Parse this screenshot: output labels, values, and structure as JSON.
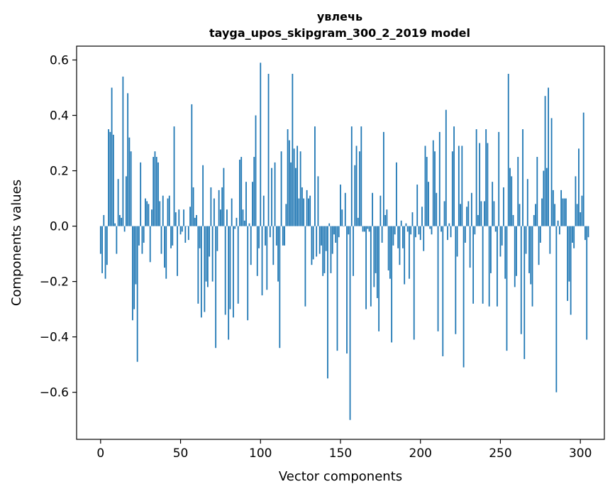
{
  "chart_data": {
    "type": "bar",
    "title": "увлечь",
    "subtitle": "tayga_upos_skipgram_300_2_2019 model",
    "xlabel": "Vector components",
    "ylabel": "Components values",
    "xlim": [
      -15,
      315
    ],
    "ylim": [
      -0.77,
      0.65
    ],
    "xticks": [
      0,
      50,
      100,
      150,
      200,
      250,
      300
    ],
    "yticks": [
      -0.6,
      -0.4,
      -0.2,
      0.0,
      0.2,
      0.4,
      0.6
    ],
    "ytick_labels": [
      "−0.6",
      "−0.4",
      "−0.2",
      "0.0",
      "0.2",
      "0.4",
      "0.6"
    ],
    "grid": false,
    "bar_color": "#1f77b4",
    "values": [
      -0.1,
      -0.17,
      0.04,
      -0.19,
      -0.14,
      0.35,
      0.34,
      0.5,
      0.33,
      0.01,
      -0.1,
      0.17,
      0.04,
      0.03,
      0.54,
      -0.02,
      0.18,
      0.48,
      0.32,
      0.27,
      -0.34,
      -0.3,
      -0.21,
      -0.49,
      -0.07,
      0.23,
      -0.1,
      -0.06,
      0.1,
      0.09,
      0.08,
      -0.13,
      0.06,
      0.25,
      0.27,
      0.25,
      0.23,
      0.09,
      -0.1,
      0.11,
      -0.15,
      -0.19,
      0.1,
      0.11,
      -0.08,
      -0.07,
      0.36,
      0.05,
      -0.18,
      0.06,
      -0.03,
      -0.02,
      0.06,
      -0.06,
      0.0,
      -0.05,
      0.07,
      0.44,
      0.14,
      0.03,
      0.04,
      -0.28,
      -0.08,
      -0.33,
      0.22,
      -0.31,
      -0.2,
      -0.22,
      -0.11,
      0.14,
      -0.2,
      0.1,
      -0.44,
      -0.09,
      0.13,
      0.06,
      0.14,
      0.21,
      -0.32,
      0.06,
      -0.41,
      -0.3,
      0.1,
      -0.33,
      -0.01,
      0.03,
      -0.28,
      0.24,
      0.25,
      0.06,
      0.02,
      0.16,
      -0.34,
      0.01,
      -0.14,
      0.16,
      0.25,
      0.4,
      -0.18,
      -0.08,
      0.59,
      -0.25,
      0.11,
      -0.07,
      -0.23,
      0.55,
      -0.04,
      0.21,
      -0.14,
      0.23,
      -0.07,
      -0.2,
      -0.44,
      0.27,
      -0.07,
      -0.07,
      0.08,
      0.35,
      0.31,
      0.23,
      0.55,
      0.28,
      0.21,
      0.29,
      0.1,
      0.27,
      0.14,
      0.1,
      -0.29,
      0.13,
      0.1,
      0.11,
      -0.14,
      -0.12,
      0.36,
      -0.11,
      0.18,
      -0.1,
      -0.07,
      -0.18,
      -0.17,
      -0.09,
      -0.55,
      0.01,
      -0.17,
      -0.1,
      -0.03,
      -0.06,
      -0.45,
      -0.04,
      0.15,
      0.06,
      0.0,
      0.12,
      -0.46,
      -0.03,
      -0.7,
      0.36,
      -0.18,
      0.22,
      0.29,
      0.03,
      0.27,
      0.36,
      -0.02,
      -0.02,
      -0.3,
      -0.01,
      -0.02,
      -0.29,
      0.12,
      -0.22,
      -0.17,
      -0.26,
      -0.38,
      0.11,
      -0.06,
      0.34,
      0.04,
      0.06,
      -0.16,
      -0.19,
      -0.42,
      -0.07,
      -0.03,
      0.23,
      -0.08,
      -0.14,
      0.02,
      -0.08,
      -0.21,
      0.01,
      -0.02,
      -0.19,
      -0.03,
      0.05,
      -0.41,
      -0.04,
      0.15,
      -0.03,
      -0.05,
      0.07,
      -0.09,
      0.29,
      0.25,
      0.16,
      -0.01,
      -0.03,
      0.31,
      0.27,
      0.12,
      -0.38,
      0.34,
      -0.02,
      -0.47,
      0.09,
      0.42,
      -0.05,
      0.01,
      -0.04,
      0.27,
      0.36,
      -0.39,
      -0.11,
      0.29,
      0.08,
      0.29,
      -0.51,
      -0.06,
      0.07,
      0.09,
      -0.15,
      0.12,
      -0.28,
      -0.03,
      0.35,
      0.04,
      0.3,
      0.09,
      -0.28,
      0.09,
      0.35,
      0.3,
      -0.29,
      -0.17,
      0.16,
      0.09,
      -0.02,
      -0.29,
      0.34,
      -0.11,
      -0.07,
      0.14,
      -0.19,
      -0.45,
      0.55,
      0.21,
      0.18,
      0.04,
      -0.22,
      -0.18,
      0.25,
      0.08,
      -0.39,
      0.35,
      -0.48,
      -0.1,
      0.17,
      -0.17,
      -0.21,
      -0.29,
      0.04,
      0.08,
      0.25,
      -0.14,
      -0.06,
      0.1,
      0.2,
      0.47,
      0.21,
      0.5,
      -0.1,
      0.39,
      0.13,
      0.08,
      -0.6,
      0.02,
      -0.03,
      0.13,
      0.1,
      0.1,
      0.1,
      -0.27,
      -0.2,
      -0.32,
      -0.06,
      -0.08,
      0.18,
      0.08,
      0.28,
      0.05,
      0.11,
      0.41,
      -0.05,
      -0.41,
      -0.04
    ]
  }
}
